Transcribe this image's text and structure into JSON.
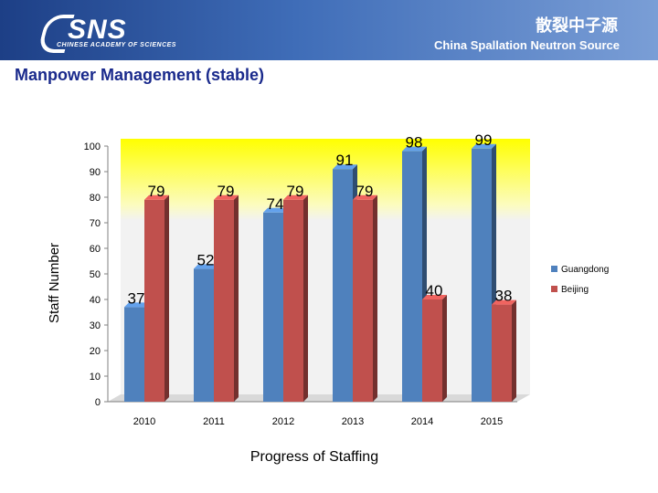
{
  "header": {
    "logo_text": "SNS",
    "logo_subtext": "CHINESE ACADEMY OF SCIENCES",
    "institution_cn": "散裂中子源",
    "institution_en": "China Spallation Neutron Source",
    "gradient_colors": [
      "#1d3f86",
      "#7a9ed6"
    ]
  },
  "slide": {
    "title": "Manpower Management (stable)"
  },
  "chart_data": {
    "type": "bar",
    "style": "3d-clustered",
    "categories": [
      "2010",
      "2011",
      "2012",
      "2013",
      "2014",
      "2015"
    ],
    "series": [
      {
        "name": "Guangdong",
        "color": "#4f81bd",
        "values": [
          37,
          52,
          74,
          91,
          98,
          99
        ]
      },
      {
        "name": "Beijing",
        "color": "#c0504d",
        "values": [
          79,
          79,
          79,
          79,
          40,
          38
        ]
      }
    ],
    "yticks": [
      0,
      10,
      20,
      30,
      40,
      50,
      60,
      70,
      80,
      90,
      100
    ],
    "ylim": [
      0,
      100
    ],
    "ylabel": "Staff Number",
    "xlabel": "Progress of Staffing",
    "legend_position": "right",
    "background_gradient": [
      "#f2f2f2",
      "#ffff00"
    ]
  }
}
